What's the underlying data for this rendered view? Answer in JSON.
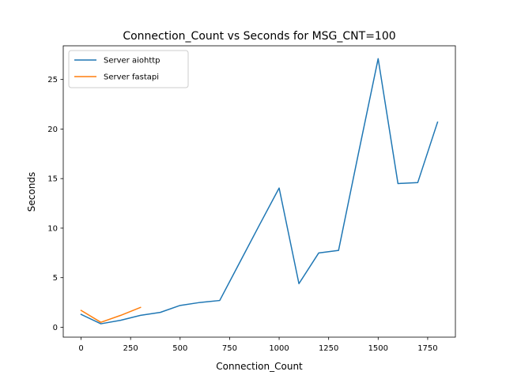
{
  "chart_data": {
    "type": "line",
    "title": "Connection_Count vs Seconds for MSG_CNT=100",
    "xlabel": "Connection_Count",
    "ylabel": "Seconds",
    "xlim": [
      -90,
      1890
    ],
    "ylim": [
      -1.0,
      28.4
    ],
    "xticks": [
      0,
      250,
      500,
      750,
      1000,
      1250,
      1500,
      1750
    ],
    "yticks": [
      0,
      5,
      10,
      15,
      20,
      25
    ],
    "grid": false,
    "legend_position": "upper left",
    "series": [
      {
        "name": "Server aiohttp",
        "color": "#1f77b4",
        "x": [
          0,
          100,
          200,
          300,
          400,
          500,
          600,
          700,
          800,
          900,
          1000,
          1100,
          1200,
          1300,
          1400,
          1500,
          1600,
          1700,
          1800
        ],
        "y": [
          1.3,
          0.35,
          0.7,
          1.2,
          1.5,
          2.2,
          2.5,
          2.7,
          6.5,
          10.3,
          14.05,
          4.4,
          7.5,
          7.75,
          17.5,
          27.1,
          14.5,
          14.6,
          20.7
        ]
      },
      {
        "name": "Server fastapi",
        "color": "#ff7f0e",
        "x": [
          0,
          100,
          200,
          300
        ],
        "y": [
          1.7,
          0.5,
          1.2,
          2.0
        ]
      }
    ]
  }
}
